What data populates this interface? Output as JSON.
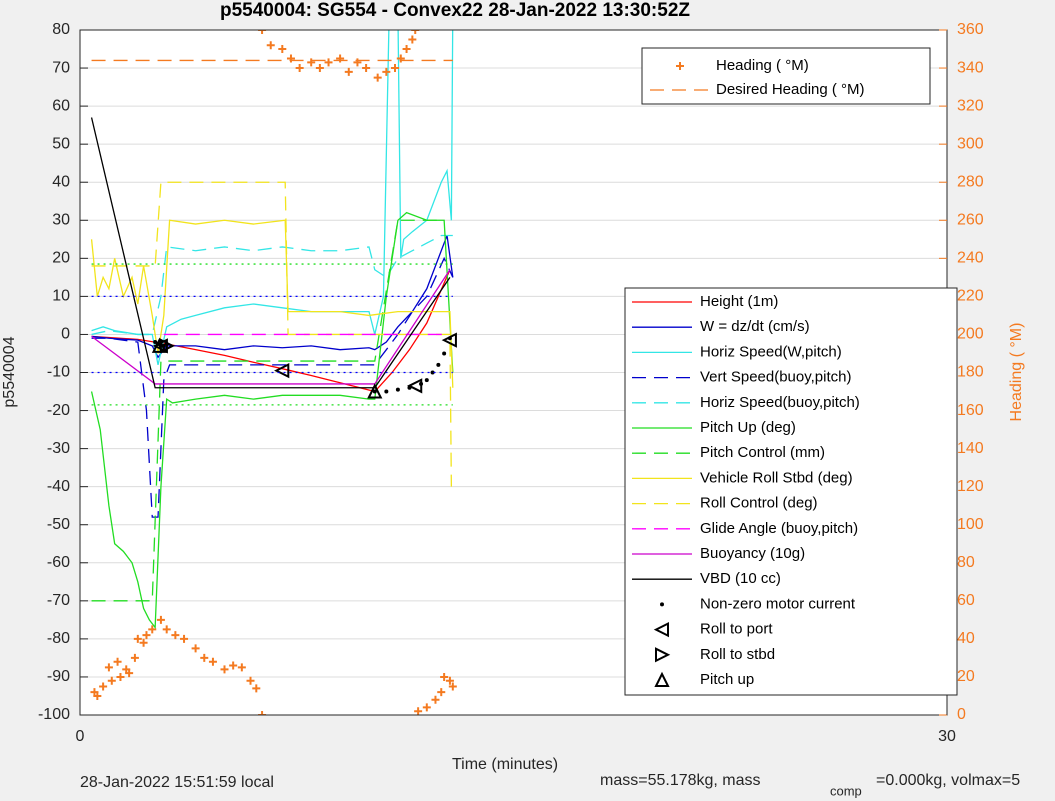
{
  "chart_data": {
    "type": "line",
    "title": "p5540004: SG554 - Convex22 28-Jan-2022 13:30:52Z",
    "x_label": "Time (minutes)",
    "y_label": "p5540004",
    "y2_label": "Heading ( °M)",
    "xlim": [
      0,
      30
    ],
    "xticks": [
      0,
      30
    ],
    "ylim": [
      -100,
      80
    ],
    "yticks": [
      -100,
      -90,
      -80,
      -70,
      -60,
      -50,
      -40,
      -30,
      -20,
      -10,
      0,
      10,
      20,
      30,
      40,
      50,
      60,
      70,
      80
    ],
    "y2lim": [
      0,
      360
    ],
    "y2ticks": [
      0,
      20,
      40,
      60,
      80,
      100,
      120,
      140,
      160,
      180,
      200,
      220,
      240,
      260,
      280,
      300,
      320,
      340,
      360
    ],
    "grid": "y",
    "footer_left": "28-Jan-2022 15:51:59 local",
    "footer_right": "mass=55.178kg, mass",
    "footer_sub": "comp",
    "footer_tail": "=0.000kg, volmax=5",
    "series": [
      {
        "name": "Height (1m)",
        "color": "#ff0000",
        "style": "solid",
        "x": [
          0.4,
          1,
          2,
          3,
          4,
          5,
          6,
          7,
          8,
          9,
          10.2,
          10.8,
          11.4,
          12,
          12.8
        ],
        "values": [
          -0.5,
          -0.8,
          -1.3,
          -2.5,
          -4,
          -5.5,
          -7.3,
          -9,
          -10.8,
          -12.7,
          -15,
          -10,
          -4,
          3,
          17
        ]
      },
      {
        "name": "W = dz/dt (cm/s)",
        "color": "#0000cc",
        "style": "solid",
        "x": [
          0.4,
          1,
          2,
          2.5,
          2.7,
          3,
          4,
          5,
          6,
          7,
          8,
          9,
          10,
          10.2,
          10.6,
          11,
          11.5,
          12,
          12.5,
          12.7,
          12.9
        ],
        "values": [
          -0.5,
          -1,
          -1.5,
          -3,
          -6,
          -3,
          -3,
          -4,
          -3,
          -3.5,
          -3,
          -4,
          -3.5,
          -4,
          -2,
          2,
          6,
          12,
          22,
          26,
          15
        ]
      },
      {
        "name": "Horiz Speed(W,pitch)",
        "color": "#33e6e6",
        "style": "solid",
        "x": [
          0.4,
          0.8,
          1.2,
          2,
          2.5,
          2.7,
          3,
          3.5,
          4,
          5,
          6,
          7,
          8,
          9,
          10,
          10.2,
          10.5,
          10.7,
          11,
          11.1,
          11.2,
          11.5,
          12,
          12.5,
          12.7,
          12.85,
          12.9
        ],
        "values": [
          1,
          2,
          1,
          0,
          0,
          -8,
          2,
          4,
          5,
          7,
          8,
          7,
          6,
          6,
          6,
          0,
          10,
          85,
          85,
          20,
          25,
          27,
          30,
          40,
          43,
          30,
          85
        ]
      },
      {
        "name": "Vert Speed(buoy,pitch)",
        "color": "#0000cc",
        "style": "dashed",
        "x": [
          0.4,
          1,
          2,
          2.3,
          2.5,
          2.7,
          2.9,
          3.1,
          4,
          5,
          6,
          7,
          8,
          9,
          10,
          10.2,
          10.6,
          11,
          11.5,
          12,
          12.6,
          12.9
        ],
        "values": [
          -1,
          -1,
          -2,
          -20,
          -48,
          -48,
          -12,
          -8,
          -8,
          -8,
          -8,
          -8,
          -8,
          -8,
          -8,
          -8,
          -4,
          0,
          6,
          10,
          20,
          15
        ]
      },
      {
        "name": "Horiz Speed(buoy,pitch)",
        "color": "#33e6e6",
        "style": "dashed",
        "x": [
          0.4,
          1,
          2,
          2.5,
          2.8,
          3,
          4,
          5,
          6,
          7,
          8,
          9,
          10,
          10.2,
          10.6,
          11,
          11.5,
          12,
          12.5,
          12.9
        ],
        "values": [
          0,
          1,
          0,
          0,
          10,
          23,
          22,
          23,
          22,
          23,
          22,
          22,
          23,
          17,
          15,
          20,
          22,
          24,
          26,
          26
        ]
      },
      {
        "name": "Pitch Up (deg)",
        "color": "#22dd22",
        "style": "solid",
        "x": [
          0.4,
          0.7,
          1,
          1.2,
          1.5,
          1.8,
          2,
          2.2,
          2.4,
          2.6,
          2.8,
          3,
          3.2,
          4,
          5,
          6,
          7,
          8,
          9,
          10,
          10.2,
          10.6,
          11,
          11.3,
          12,
          12.6,
          12.9
        ],
        "values": [
          -15,
          -25,
          -45,
          -55,
          -57,
          -60,
          -65,
          -72,
          -75,
          -77,
          -40,
          -17,
          -18,
          -17,
          -16,
          -17,
          -16,
          -16,
          -16,
          -17,
          -17,
          10,
          30,
          32,
          30,
          30,
          -10
        ]
      },
      {
        "name": "Pitch Control (mm)",
        "color": "#22dd22",
        "style": "dashed",
        "x": [
          0.4,
          2.5,
          2.8,
          10.2,
          11,
          12.6
        ],
        "values": [
          -70,
          -70,
          -7,
          -7,
          30,
          30
        ]
      },
      {
        "name": "Vehicle Roll Stbd (deg)",
        "color": "#f2e41c",
        "style": "solid",
        "x": [
          0.4,
          0.6,
          0.8,
          1,
          1.2,
          1.5,
          1.8,
          2,
          2.2,
          2.5,
          2.7,
          2.9,
          3.1,
          4,
          5,
          6,
          7.1,
          7.2,
          8,
          9,
          10,
          11,
          12,
          12.8,
          12.9
        ],
        "values": [
          25,
          10,
          15,
          12,
          20,
          10,
          15,
          8,
          18,
          5,
          -5,
          5,
          30,
          29,
          30,
          29,
          30,
          6,
          6,
          6,
          5,
          6,
          6,
          6,
          -14
        ]
      },
      {
        "name": "Roll Control (deg)",
        "color": "#f2e41c",
        "style": "dashed",
        "x": [
          0.4,
          2.6,
          2.8,
          7.1,
          7.2,
          12.8,
          12.85
        ],
        "values": [
          18,
          18,
          40,
          40,
          0,
          0,
          -40
        ]
      },
      {
        "name": "Glide Angle (buoy,pitch)",
        "color": "#ff00ff",
        "style": "dashed",
        "x": [
          2.9,
          12.8
        ],
        "values": [
          0,
          0
        ]
      },
      {
        "name": "Buoyancy (10g)",
        "color": "#cc00cc",
        "style": "solid",
        "x": [
          0.4,
          2.6,
          10.2,
          12.8
        ],
        "values": [
          -0.5,
          -13,
          -13,
          17
        ]
      },
      {
        "name": "VBD (10 cc)",
        "color": "#000000",
        "style": "solid",
        "x": [
          0.4,
          2.6,
          10.2,
          12.8
        ],
        "values": [
          57,
          -14,
          -14,
          15
        ]
      },
      {
        "name": "Non-zero motor current",
        "color": "#000000",
        "style": "markers",
        "marker": "dot",
        "x": [
          2.6,
          2.7,
          2.8,
          2.9,
          3.0,
          10.2,
          10.6,
          11,
          11.4,
          11.8,
          12,
          12.2,
          12.4,
          12.6,
          12.8
        ],
        "values": [
          -2,
          -2.5,
          -3,
          -3,
          -2.5,
          -15,
          -15,
          -14.5,
          -14,
          -13,
          -12,
          -10,
          -8,
          -5,
          -1
        ]
      },
      {
        "name": "Roll to port",
        "color": "#000000",
        "style": "markers",
        "marker": "tri-left",
        "x": [
          2.8,
          7.0,
          11.6,
          12.8
        ],
        "values": [
          -3,
          -9.5,
          -13.5,
          -1.5
        ]
      },
      {
        "name": "Roll to stbd",
        "color": "#000000",
        "style": "markers",
        "marker": "tri-right",
        "x": [
          3.0
        ],
        "values": [
          -3
        ]
      },
      {
        "name": "Pitch up",
        "color": "#000000",
        "style": "markers",
        "marker": "tri-up",
        "x": [
          2.75,
          10.2
        ],
        "values": [
          -3,
          -15
        ]
      },
      {
        "color": "#0000ff",
        "style": "dotted",
        "x": [
          0.4,
          12.9
        ],
        "values": [
          10,
          10
        ]
      },
      {
        "color": "#0000ff",
        "style": "dotted",
        "x": [
          0.4,
          12.9
        ],
        "values": [
          -10,
          -10
        ]
      },
      {
        "color": "#22dd22",
        "style": "dotted",
        "x": [
          0.4,
          12.9
        ],
        "values": [
          18.5,
          18.5
        ]
      },
      {
        "color": "#22dd22",
        "style": "dotted",
        "x": [
          0.4,
          12.9
        ],
        "values": [
          -18.5,
          -18.5
        ]
      },
      {
        "name": "Heading ( °M)",
        "color": "#f47a20",
        "style": "markers",
        "marker": "plus",
        "axis": "y2",
        "x": [
          0.5,
          0.6,
          0.8,
          1.0,
          1.1,
          1.3,
          1.4,
          1.6,
          1.7,
          1.9,
          2.0,
          2.2,
          2.3,
          2.5,
          2.8,
          3.0,
          3.3,
          3.6,
          4.0,
          4.3,
          4.6,
          5.0,
          5.3,
          5.6,
          5.9,
          6.1,
          6.3,
          6.3,
          6.6,
          7.0,
          7.3,
          7.6,
          8.0,
          8.3,
          8.6,
          9.0,
          9.3,
          9.6,
          9.9,
          10.3,
          10.6,
          10.9,
          11.1,
          11.3,
          11.5,
          11.6,
          11.7,
          12.0,
          12.3,
          12.5,
          12.6,
          12.8,
          12.9
        ],
        "values": [
          12,
          10,
          15,
          25,
          18,
          28,
          20,
          24,
          22,
          30,
          40,
          38,
          42,
          45,
          50,
          45,
          42,
          40,
          35,
          30,
          28,
          24,
          26,
          25,
          18,
          14,
          0,
          360,
          352,
          350,
          345,
          340,
          343,
          340,
          343,
          345,
          338,
          343,
          340,
          335,
          338,
          340,
          345,
          350,
          355,
          360,
          2,
          4,
          8,
          12,
          20,
          18,
          15
        ]
      },
      {
        "name": "Desired Heading ( °M)",
        "color": "#f47a20",
        "style": "dashed",
        "axis": "y2",
        "x": [
          0.4,
          12.9
        ],
        "values": [
          344,
          344
        ]
      }
    ]
  }
}
